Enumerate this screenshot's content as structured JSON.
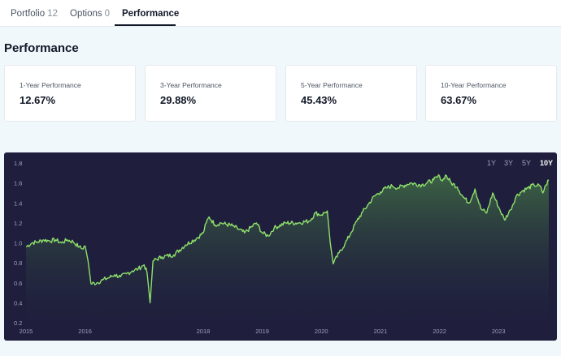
{
  "tabs": [
    {
      "label": "Portfolio",
      "count": "12"
    },
    {
      "label": "Options",
      "count": "0"
    },
    {
      "label": "Performance",
      "count": ""
    }
  ],
  "section": {
    "title": "Performance"
  },
  "cards": [
    {
      "label": "1-Year Performance",
      "value": "12.67%"
    },
    {
      "label": "3-Year Performance",
      "value": "29.88%"
    },
    {
      "label": "5-Year Performance",
      "value": "45.43%"
    },
    {
      "label": "10-Year Performance",
      "value": "63.67%"
    }
  ],
  "ranges": {
    "items": [
      "1Y",
      "3Y",
      "5Y",
      "10Y"
    ],
    "selected": "10Y"
  },
  "colors": {
    "line": "#8ee06a",
    "background": "#1f1f3d",
    "fill_top": "#3f6a44",
    "fill_bottom": "#1f1f3d"
  },
  "chart_data": {
    "type": "area",
    "title": "",
    "xlabel": "",
    "ylabel": "",
    "ylim": [
      0.2,
      1.8
    ],
    "xlim": [
      2015.0,
      2023.85
    ],
    "yticks": [
      "0.2",
      "0.4",
      "0.6",
      "0.8",
      "1.0",
      "1.2",
      "1.4",
      "1.6",
      "1.8"
    ],
    "xticks": [
      "2015",
      "2016",
      "2018",
      "2019",
      "2020",
      "2021",
      "2022",
      "2023"
    ],
    "xtick_values": [
      2015,
      2016,
      2018,
      2019,
      2020,
      2021,
      2022,
      2023
    ],
    "grid": false,
    "x": [
      2015.0,
      2015.1,
      2015.2,
      2015.3,
      2015.4,
      2015.5,
      2015.6,
      2015.7,
      2015.8,
      2015.9,
      2015.95,
      2016.0,
      2016.05,
      2016.1,
      2016.2,
      2016.3,
      2016.4,
      2016.5,
      2016.6,
      2016.7,
      2016.8,
      2016.9,
      2017.0,
      2017.05,
      2017.1,
      2017.15,
      2017.3,
      2017.5,
      2017.7,
      2017.9,
      2018.0,
      2018.05,
      2018.1,
      2018.2,
      2018.3,
      2018.5,
      2018.7,
      2018.9,
      2019.0,
      2019.1,
      2019.2,
      2019.4,
      2019.6,
      2019.8,
      2019.9,
      2020.0,
      2020.05,
      2020.1,
      2020.15,
      2020.2,
      2020.3,
      2020.4,
      2020.5,
      2020.6,
      2020.7,
      2020.8,
      2020.9,
      2021.0,
      2021.1,
      2021.2,
      2021.3,
      2021.5,
      2021.7,
      2021.9,
      2022.0,
      2022.05,
      2022.1,
      2022.2,
      2022.3,
      2022.4,
      2022.5,
      2022.6,
      2022.7,
      2022.8,
      2022.9,
      2023.0,
      2023.1,
      2023.2,
      2023.3,
      2023.4,
      2023.5,
      2023.6,
      2023.7,
      2023.75,
      2023.8,
      2023.85
    ],
    "values": [
      0.96,
      1.0,
      1.01,
      1.03,
      1.02,
      1.03,
      1.0,
      1.03,
      1.01,
      0.96,
      0.94,
      0.97,
      0.82,
      0.59,
      0.6,
      0.63,
      0.65,
      0.68,
      0.66,
      0.69,
      0.72,
      0.74,
      0.78,
      0.7,
      0.4,
      0.82,
      0.86,
      0.88,
      0.98,
      1.05,
      1.1,
      1.2,
      1.26,
      1.18,
      1.2,
      1.17,
      1.1,
      1.2,
      1.1,
      1.07,
      1.15,
      1.2,
      1.2,
      1.22,
      1.3,
      1.28,
      1.3,
      1.32,
      1.0,
      0.79,
      0.9,
      0.99,
      1.1,
      1.22,
      1.31,
      1.39,
      1.47,
      1.51,
      1.55,
      1.57,
      1.55,
      1.6,
      1.58,
      1.63,
      1.67,
      1.62,
      1.68,
      1.6,
      1.56,
      1.46,
      1.4,
      1.54,
      1.34,
      1.3,
      1.5,
      1.36,
      1.23,
      1.33,
      1.47,
      1.52,
      1.55,
      1.58,
      1.57,
      1.5,
      1.58,
      1.63
    ]
  }
}
